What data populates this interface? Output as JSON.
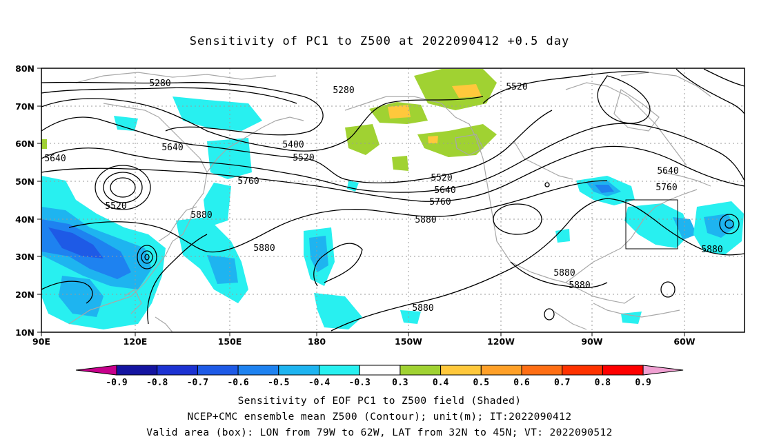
{
  "title": "Sensitivity of PC1 to Z500 at 2022090412 +0.5 day",
  "map": {
    "lat_labels": [
      "80N",
      "70N",
      "60N",
      "50N",
      "40N",
      "30N",
      "20N",
      "10N"
    ],
    "lon_labels": [
      "90E",
      "120E",
      "150E",
      "180",
      "150W",
      "120W",
      "90W",
      "60W"
    ],
    "contour_labels": [
      "5280",
      "5280",
      "5520",
      "5400",
      "5520",
      "5640",
      "5640",
      "5520",
      "5760",
      "5880",
      "5880",
      "5520",
      "5640",
      "5760",
      "5880",
      "5640",
      "5760",
      "5880",
      "5880",
      "5880",
      "5880"
    ],
    "valid_box": {
      "lon_west": "79W",
      "lon_east": "62W",
      "lat_south": "32N",
      "lat_north": "45N"
    }
  },
  "colorbar": {
    "labels": [
      "-0.9",
      "-0.8",
      "-0.7",
      "-0.6",
      "-0.5",
      "-0.4",
      "-0.3",
      "0.3",
      "0.4",
      "0.5",
      "0.6",
      "0.7",
      "0.8",
      "0.9"
    ],
    "colors": [
      "#c8008c",
      "#1414a0",
      "#1c32d2",
      "#1e5ae6",
      "#1e82f0",
      "#1eb4f0",
      "#28f0f0",
      "#ffffff",
      "#a0d232",
      "#ffc83c",
      "#ffa028",
      "#ff6e14",
      "#ff3200",
      "#ff0000",
      "#f0a0d2"
    ]
  },
  "footer": {
    "line1": "Sensitivity of EOF PC1 to Z500 field (Shaded)",
    "line2": "NCEP+CMC ensemble mean Z500 (Contour); unit(m); IT:2022090412",
    "line3": "Valid area (box): LON from 79W to 62W, LAT from 32N to 45N; VT: 2022090512"
  }
}
